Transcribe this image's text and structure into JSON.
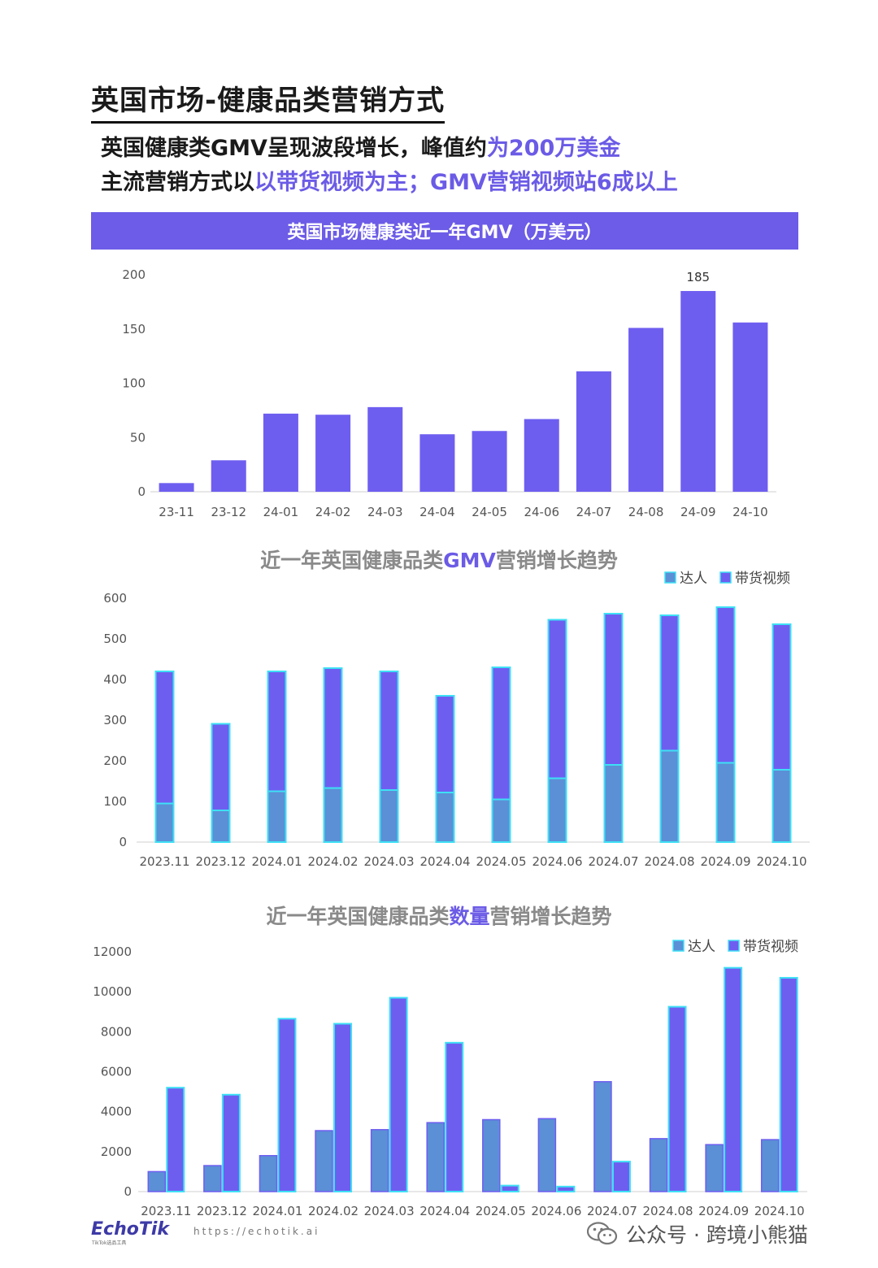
{
  "header": {
    "title": "英国市场-健康品类营销方式",
    "line1_prefix": "英国健康类GMV呈现波段增长，峰值约",
    "line1_highlight": "为200万美金",
    "line2_prefix": "主流营销方式以",
    "line2_highlight": "以带货视频为主；GMV营销视频站6成以上"
  },
  "footer": {
    "logo": "EchoTik",
    "logo_sub": "TikTok选品工具",
    "url": "https://echotik.ai",
    "wechat": "公众号 · 跨境小熊猫"
  },
  "colors": {
    "accent": "#6c5ce7",
    "bar_purple": "#6e5ef0",
    "bar_blue": "#5b8fd6",
    "bar_outline": "#3ee0f5",
    "axis_text": "#555555"
  },
  "chart_data": [
    {
      "type": "bar",
      "title": "英国市场健康类近一年GMV（万美元）",
      "categories": [
        "23-11",
        "23-12",
        "24-01",
        "24-02",
        "24-03",
        "24-04",
        "24-05",
        "24-06",
        "24-07",
        "24-08",
        "24-09",
        "24-10"
      ],
      "values": [
        8,
        29,
        72,
        71,
        78,
        53,
        56,
        67,
        111,
        151,
        185,
        156
      ],
      "data_labels": {
        "10": "185"
      },
      "ylim": [
        0,
        200
      ],
      "yticks": [
        0,
        50,
        100,
        150,
        200
      ],
      "xlabel": "",
      "ylabel": ""
    },
    {
      "type": "bar",
      "stacked": true,
      "title_prefix": "近一年英国健康品类",
      "title_highlight": "GMV",
      "title_suffix": "营销增长趋势",
      "categories": [
        "2023.11",
        "2023.12",
        "2024.01",
        "2024.02",
        "2024.03",
        "2024.04",
        "2024.05",
        "2024.06",
        "2024.07",
        "2024.08",
        "2024.09",
        "2024.10"
      ],
      "series": [
        {
          "name": "达人",
          "values": [
            95,
            78,
            125,
            133,
            128,
            122,
            105,
            157,
            190,
            225,
            195,
            178
          ]
        },
        {
          "name": "带货视频",
          "values": [
            325,
            213,
            295,
            295,
            292,
            238,
            325,
            390,
            372,
            333,
            383,
            358
          ]
        }
      ],
      "ylim": [
        0,
        600
      ],
      "yticks": [
        0,
        100,
        200,
        300,
        400,
        500,
        600
      ],
      "legend": "top-right"
    },
    {
      "type": "bar",
      "title_prefix": "近一年英国健康品类",
      "title_highlight": "数量",
      "title_suffix": "营销增长趋势",
      "categories": [
        "2023.11",
        "2023.12",
        "2024.01",
        "2024.02",
        "2024.03",
        "2024.04",
        "2024.05",
        "2024.06",
        "2024.07",
        "2024.08",
        "2024.09",
        "2024.10"
      ],
      "series": [
        {
          "name": "达人",
          "values": [
            1000,
            1300,
            1800,
            3050,
            3100,
            3450,
            3600,
            3650,
            5500,
            2650,
            2350,
            2600
          ]
        },
        {
          "name": "带货视频",
          "values": [
            5200,
            4850,
            8650,
            8400,
            9700,
            7450,
            300,
            250,
            1500,
            9250,
            11200,
            10700
          ]
        }
      ],
      "ylim": [
        0,
        12000
      ],
      "yticks": [
        0,
        2000,
        4000,
        6000,
        8000,
        10000,
        12000
      ],
      "legend": "top-right"
    }
  ]
}
